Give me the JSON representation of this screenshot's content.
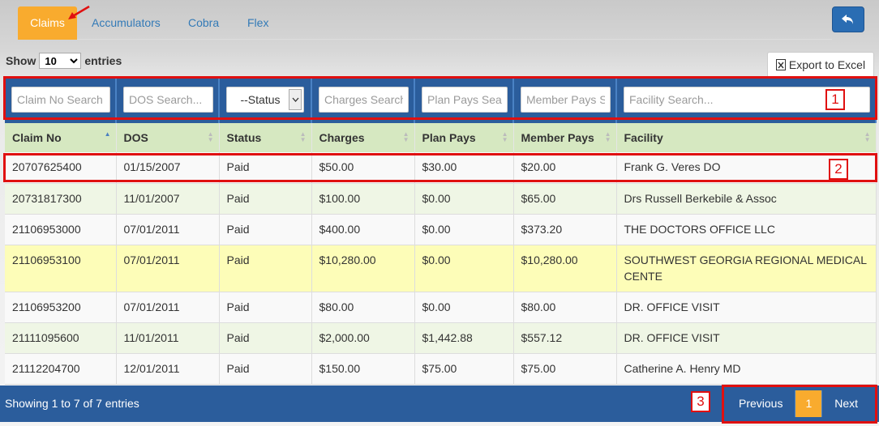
{
  "tabs": [
    {
      "label": "Claims",
      "active": true
    },
    {
      "label": "Accumulators"
    },
    {
      "label": "Cobra"
    },
    {
      "label": "Flex"
    }
  ],
  "colors": {
    "accent": "#f9ab2e",
    "primary": "#2b5d9c",
    "annotation": "#e01010"
  },
  "show_entries": {
    "prefix": "Show",
    "value": "10",
    "suffix": "entries"
  },
  "export_label": "Export to Excel",
  "filters": {
    "claim_no": "Claim No Search",
    "dos": "DOS Search...",
    "status": "--Status",
    "charges": "Charges Search...",
    "plan_pays": "Plan Pays Search...",
    "member_pays": "Member Pays Search...",
    "facility": "Facility Search..."
  },
  "columns": [
    "Claim No",
    "DOS",
    "Status",
    "Charges",
    "Plan Pays",
    "Member Pays",
    "Facility"
  ],
  "rows": [
    [
      "20707625400",
      "01/15/2007",
      "Paid",
      "$50.00",
      "$30.00",
      "$20.00",
      "Frank G. Veres DO"
    ],
    [
      "20731817300",
      "11/01/2007",
      "Paid",
      "$100.00",
      "$0.00",
      "$65.00",
      "Drs Russell Berkebile & Assoc"
    ],
    [
      "21106953000",
      "07/01/2011",
      "Paid",
      "$400.00",
      "$0.00",
      "$373.20",
      "THE DOCTORS OFFICE LLC"
    ],
    [
      "21106953100",
      "07/01/2011",
      "Paid",
      "$10,280.00",
      "$0.00",
      "$10,280.00",
      "SOUTHWEST GEORGIA REGIONAL MEDICAL CENTE"
    ],
    [
      "21106953200",
      "07/01/2011",
      "Paid",
      "$80.00",
      "$0.00",
      "$80.00",
      "DR. OFFICE VISIT"
    ],
    [
      "21111095600",
      "11/01/2011",
      "Paid",
      "$2,000.00",
      "$1,442.88",
      "$557.12",
      "DR. OFFICE VISIT"
    ],
    [
      "21112204700",
      "12/01/2011",
      "Paid",
      "$150.00",
      "$75.00",
      "$75.00",
      "Catherine A. Henry MD"
    ]
  ],
  "footer": {
    "info": "Showing 1 to 7 of 7 entries",
    "previous": "Previous",
    "page": "1",
    "next": "Next"
  },
  "annotations": [
    "1",
    "2",
    "3"
  ]
}
